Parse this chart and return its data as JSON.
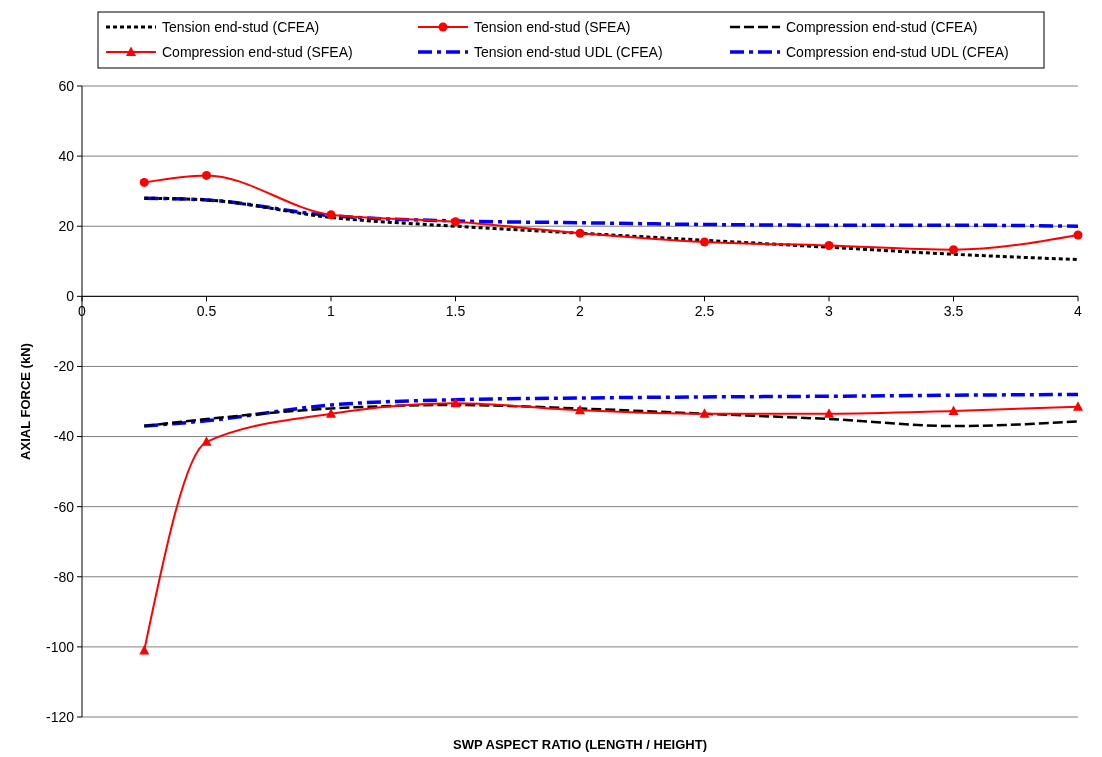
{
  "chart_data": {
    "type": "line",
    "xlabel": "SWP ASPECT RATIO (LENGTH / HEIGHT)",
    "ylabel": "AXIAL FORCE (kN)",
    "x": [
      0.25,
      0.5,
      1,
      1.5,
      2,
      2.5,
      3,
      3.5,
      4
    ],
    "xlim": [
      0,
      4
    ],
    "xticks": [
      0,
      0.5,
      1,
      1.5,
      2,
      2.5,
      3,
      3.5,
      4
    ],
    "ylim": [
      -120,
      60
    ],
    "yticks": [
      -120,
      -100,
      -80,
      -60,
      -40,
      -20,
      0,
      20,
      40,
      60
    ],
    "grid": "y",
    "legend": "top",
    "series": [
      {
        "name": "Tension end-stud (CFEA)",
        "color": "#000000",
        "line_style": "dotted",
        "marker": "none",
        "values": [
          28,
          27.5,
          22.5,
          20,
          18,
          16,
          14,
          12,
          10.5
        ]
      },
      {
        "name": "Tension end-stud (SFEA)",
        "color": "#ff0000",
        "line_style": "solid",
        "marker": "circle",
        "values": [
          32.5,
          34.5,
          23.3,
          21.3,
          18,
          15.5,
          14.5,
          13.3,
          17.5
        ]
      },
      {
        "name": "Compression end-stud (CFEA)",
        "color": "#000000",
        "line_style": "dashed",
        "marker": "none",
        "values": [
          -37,
          -35,
          -32,
          -31,
          -32,
          -33.5,
          -35,
          -37,
          -35.7
        ]
      },
      {
        "name": "Compression end-stud (SFEA)",
        "color": "#ff0000",
        "line_style": "solid",
        "marker": "triangle",
        "values": [
          -101,
          -41.5,
          -33.5,
          -30.5,
          -32.5,
          -33.5,
          -33.5,
          -32.7,
          -31.5
        ]
      },
      {
        "name": "Tension end-stud UDL (CFEA)",
        "color": "#0000ff",
        "line_style": "dashdot",
        "marker": "none",
        "values": [
          28,
          27.5,
          23,
          21.5,
          21,
          20.5,
          20.3,
          20.3,
          20
        ]
      },
      {
        "name": "Compression end-stud UDL (CFEA)",
        "color": "#0000ff",
        "line_style": "dashdot",
        "marker": "none",
        "values": [
          -37,
          -35.5,
          -31,
          -29.5,
          -29,
          -28.7,
          -28.5,
          -28.2,
          -28
        ]
      }
    ]
  }
}
